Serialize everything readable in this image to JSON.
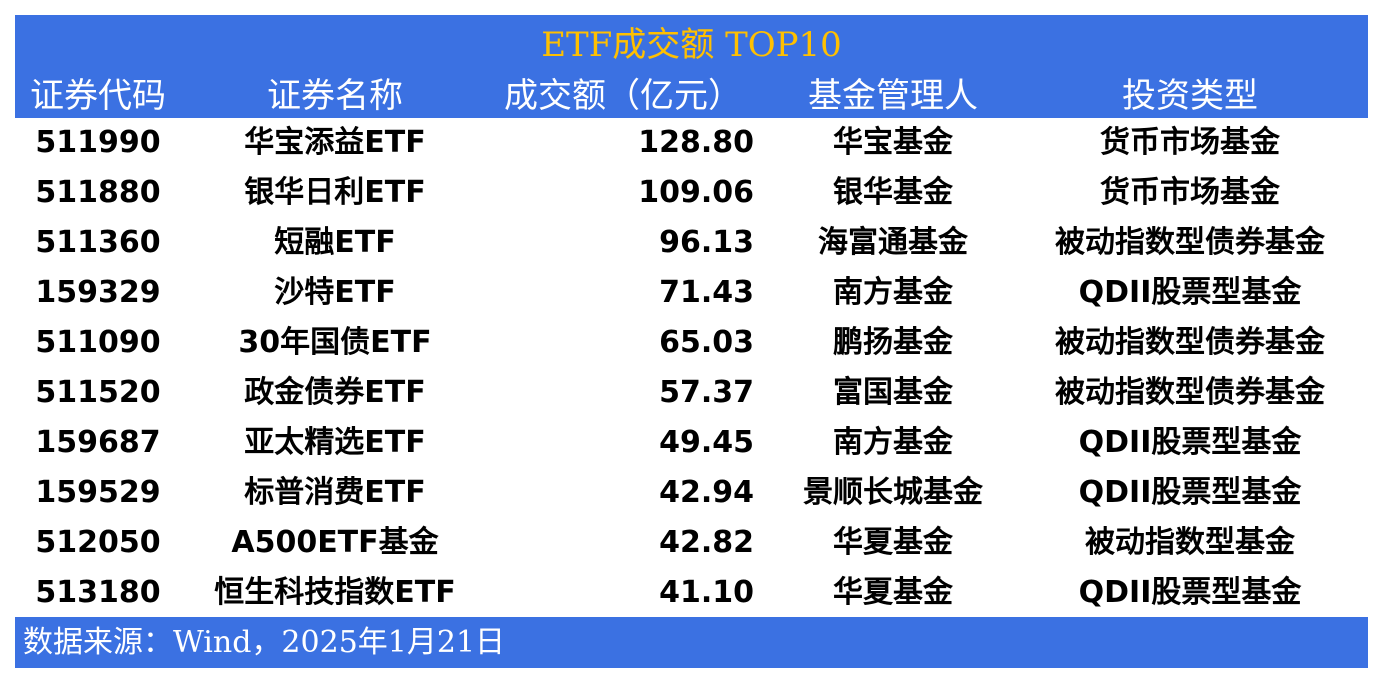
{
  "title": "ETF成交额 TOP10",
  "headers": [
    "证券代码",
    "证券名称",
    "成交额（亿元）",
    "基金管理人",
    "投资类型"
  ],
  "rows": [
    [
      "511990",
      "华宝添益ETF",
      "128.80",
      "华宝基金",
      "货币市场基金"
    ],
    [
      "511880",
      "银华日利ETF",
      "109.06",
      "银华基金",
      "货币市场基金"
    ],
    [
      "511360",
      "短融ETF",
      "96.13",
      "海富通基金",
      "被动指数型债券基金"
    ],
    [
      "159329",
      "沙特ETF",
      "71.43",
      "南方基金",
      "QDII股票型基金"
    ],
    [
      "511090",
      "30年国债ETF",
      "65.03",
      "鹏扬基金",
      "被动指数型债券基金"
    ],
    [
      "511520",
      "政金债券ETF",
      "57.37",
      "富国基金",
      "被动指数型债券基金"
    ],
    [
      "159687",
      "亚太精选ETF",
      "49.45",
      "南方基金",
      "QDII股票型基金"
    ],
    [
      "159529",
      "标普消费ETF",
      "42.94",
      "景顺长城基金",
      "QDII股票型基金"
    ],
    [
      "512050",
      "A500ETF基金",
      "42.82",
      "华夏基金",
      "被动指数型基金"
    ],
    [
      "513180",
      "恒生科技指数ETF",
      "41.10",
      "华夏基金",
      "QDII股票型基金"
    ]
  ],
  "source": "数据来源：Wind，2025年1月21日",
  "colors": {
    "header_bg": "#3b71e2",
    "title": "#ffc000"
  }
}
